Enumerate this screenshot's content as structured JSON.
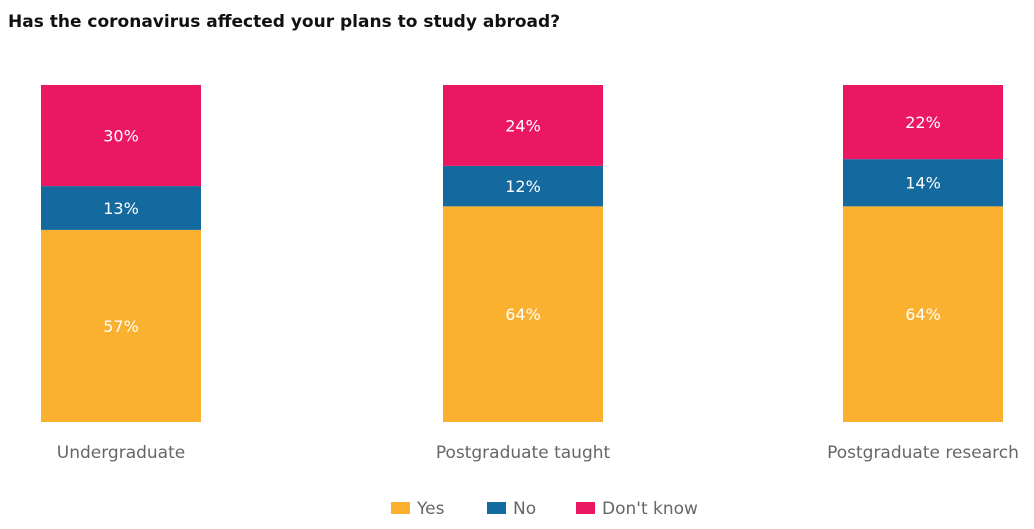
{
  "chart_data": {
    "type": "bar",
    "stacked": true,
    "title": "Has the coronavirus affected your plans to study abroad?",
    "categories": [
      "Undergraduate",
      "Postgraduate taught",
      "Postgraduate research"
    ],
    "series": [
      {
        "name": "Yes",
        "values": [
          57,
          64,
          64
        ],
        "color": "#FBB130"
      },
      {
        "name": "No",
        "values": [
          13,
          12,
          14
        ],
        "color": "#14699E"
      },
      {
        "name": "Don't know",
        "values": [
          30,
          24,
          22
        ],
        "color": "#EC1763"
      }
    ],
    "value_suffix": "%",
    "ylim": [
      0,
      100
    ],
    "grid": false,
    "legend_position": "bottom"
  }
}
